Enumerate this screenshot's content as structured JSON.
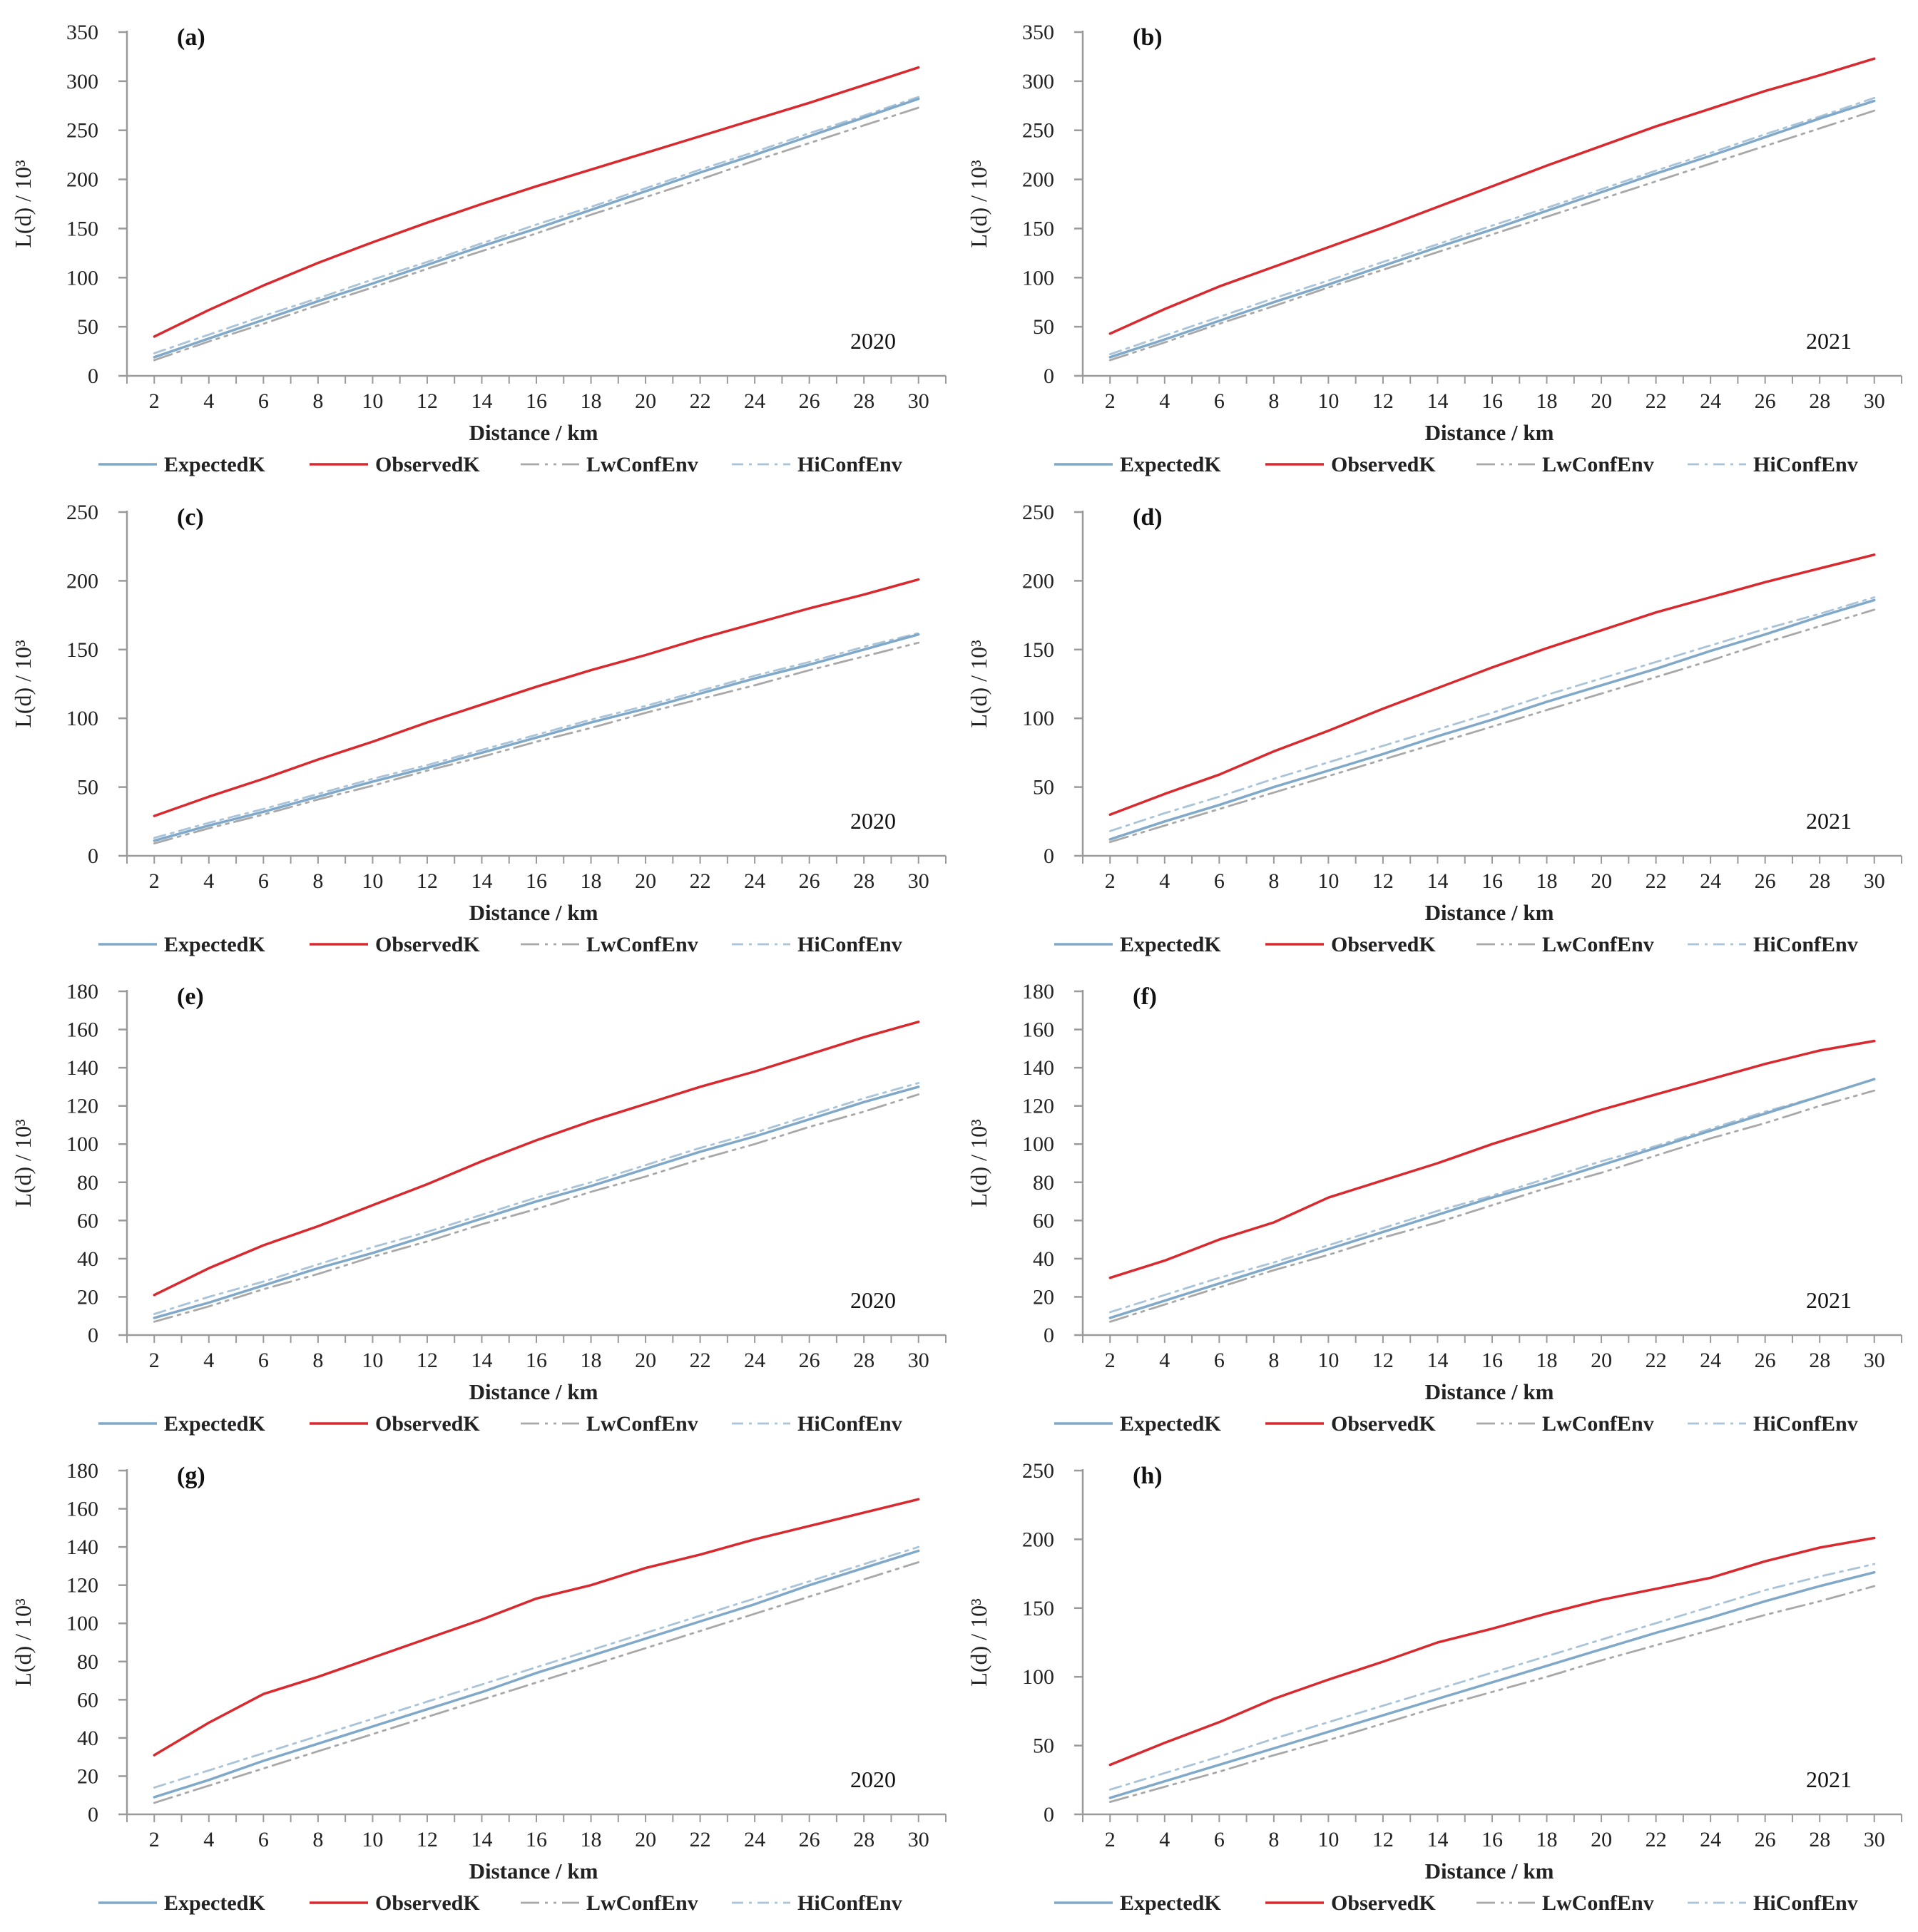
{
  "figure": {
    "legend_labels": {
      "expected": "ExpectedK",
      "observed": "ObservedK",
      "low": "LwConfEnv",
      "high": "HiConfEnv"
    },
    "colors": {
      "expected": "#7fa8c9",
      "observed": "#d9292e",
      "low": "#a8a8a8",
      "high": "#a9c3d8",
      "axis": "#9a9a9a"
    }
  },
  "chart_data": [
    {
      "type": "line",
      "panel": "(a)",
      "year": "2020",
      "xlabel": "Distance / km",
      "ylabel": "L(d) / 10³",
      "x": [
        2,
        4,
        6,
        8,
        10,
        12,
        14,
        16,
        18,
        20,
        22,
        24,
        26,
        28,
        30
      ],
      "xticks": [
        2,
        4,
        6,
        8,
        10,
        12,
        14,
        16,
        18,
        20,
        22,
        24,
        26,
        28,
        30
      ],
      "yticks": [
        0,
        50,
        100,
        150,
        200,
        250,
        300,
        350
      ],
      "ylim": [
        0,
        350
      ],
      "series": [
        {
          "name": "ExpectedK",
          "key": "expected",
          "values": [
            19,
            38,
            57,
            76,
            94,
            113,
            132,
            150,
            169,
            188,
            207,
            225,
            244,
            263,
            282
          ]
        },
        {
          "name": "ObservedK",
          "key": "observed",
          "values": [
            40,
            67,
            92,
            115,
            136,
            156,
            175,
            193,
            210,
            227,
            244,
            261,
            278,
            296,
            314
          ]
        },
        {
          "name": "LwConfEnv",
          "key": "low",
          "values": [
            16,
            35,
            53,
            72,
            90,
            109,
            127,
            145,
            164,
            182,
            200,
            219,
            237,
            255,
            273
          ]
        },
        {
          "name": "HiConfEnv",
          "key": "high",
          "values": [
            23,
            42,
            61,
            79,
            98,
            116,
            135,
            154,
            172,
            191,
            210,
            228,
            247,
            265,
            284
          ]
        }
      ]
    },
    {
      "type": "line",
      "panel": "(b)",
      "year": "2021",
      "xlabel": "Distance / km",
      "ylabel": "L(d) / 10³",
      "x": [
        2,
        4,
        6,
        8,
        10,
        12,
        14,
        16,
        18,
        20,
        22,
        24,
        26,
        28,
        30
      ],
      "xticks": [
        2,
        4,
        6,
        8,
        10,
        12,
        14,
        16,
        18,
        20,
        22,
        24,
        26,
        28,
        30
      ],
      "yticks": [
        0,
        50,
        100,
        150,
        200,
        250,
        300,
        350
      ],
      "ylim": [
        0,
        350
      ],
      "series": [
        {
          "name": "ExpectedK",
          "key": "expected",
          "values": [
            19,
            37,
            56,
            75,
            93,
            112,
            131,
            149,
            168,
            187,
            206,
            224,
            243,
            262,
            280
          ]
        },
        {
          "name": "ObservedK",
          "key": "observed",
          "values": [
            43,
            68,
            91,
            111,
            131,
            151,
            172,
            193,
            214,
            234,
            254,
            272,
            290,
            306,
            323
          ]
        },
        {
          "name": "LwConfEnv",
          "key": "low",
          "values": [
            16,
            34,
            53,
            71,
            90,
            108,
            126,
            144,
            162,
            180,
            198,
            216,
            234,
            252,
            270
          ]
        },
        {
          "name": "HiConfEnv",
          "key": "high",
          "values": [
            22,
            41,
            60,
            79,
            97,
            116,
            134,
            153,
            171,
            190,
            209,
            227,
            246,
            264,
            283
          ]
        }
      ]
    },
    {
      "type": "line",
      "panel": "(c)",
      "year": "2020",
      "xlabel": "Distance / km",
      "ylabel": "L(d) / 10³",
      "x": [
        2,
        4,
        6,
        8,
        10,
        12,
        14,
        16,
        18,
        20,
        22,
        24,
        26,
        28,
        30
      ],
      "xticks": [
        2,
        4,
        6,
        8,
        10,
        12,
        14,
        16,
        18,
        20,
        22,
        24,
        26,
        28,
        30
      ],
      "yticks": [
        0,
        50,
        100,
        150,
        200,
        250
      ],
      "ylim": [
        0,
        250
      ],
      "series": [
        {
          "name": "ExpectedK",
          "key": "expected",
          "values": [
            11,
            22,
            32,
            43,
            54,
            64,
            75,
            86,
            97,
            107,
            118,
            129,
            139,
            150,
            161
          ]
        },
        {
          "name": "ObservedK",
          "key": "observed",
          "values": [
            29,
            43,
            56,
            70,
            83,
            97,
            110,
            123,
            135,
            146,
            158,
            169,
            180,
            190,
            201
          ]
        },
        {
          "name": "LwConfEnv",
          "key": "low",
          "values": [
            9,
            20,
            30,
            41,
            51,
            62,
            72,
            83,
            93,
            104,
            114,
            124,
            135,
            145,
            155
          ]
        },
        {
          "name": "HiConfEnv",
          "key": "high",
          "values": [
            13,
            24,
            34,
            45,
            56,
            66,
            77,
            88,
            99,
            109,
            120,
            131,
            141,
            152,
            162
          ]
        }
      ]
    },
    {
      "type": "line",
      "panel": "(d)",
      "year": "2021",
      "xlabel": "Distance / km",
      "ylabel": "L(d) / 10³",
      "x": [
        2,
        4,
        6,
        8,
        10,
        12,
        14,
        16,
        18,
        20,
        22,
        24,
        26,
        28,
        30
      ],
      "xticks": [
        2,
        4,
        6,
        8,
        10,
        12,
        14,
        16,
        18,
        20,
        22,
        24,
        26,
        28,
        30
      ],
      "yticks": [
        0,
        50,
        100,
        150,
        200,
        250
      ],
      "ylim": [
        0,
        250
      ],
      "series": [
        {
          "name": "ExpectedK",
          "key": "expected",
          "values": [
            12,
            25,
            37,
            50,
            62,
            74,
            87,
            99,
            112,
            124,
            136,
            149,
            161,
            174,
            186
          ]
        },
        {
          "name": "ObservedK",
          "key": "observed",
          "values": [
            30,
            45,
            59,
            76,
            91,
            107,
            122,
            137,
            151,
            164,
            177,
            188,
            199,
            209,
            219
          ]
        },
        {
          "name": "LwConfEnv",
          "key": "low",
          "values": [
            10,
            22,
            34,
            46,
            58,
            70,
            82,
            94,
            106,
            118,
            130,
            142,
            155,
            167,
            179
          ]
        },
        {
          "name": "HiConfEnv",
          "key": "high",
          "values": [
            18,
            31,
            43,
            56,
            68,
            80,
            92,
            104,
            117,
            129,
            141,
            153,
            165,
            176,
            188
          ]
        }
      ]
    },
    {
      "type": "line",
      "panel": "(e)",
      "year": "2020",
      "xlabel": "Distance / km",
      "ylabel": "L(d) / 10³",
      "x": [
        2,
        4,
        6,
        8,
        10,
        12,
        14,
        16,
        18,
        20,
        22,
        24,
        26,
        28,
        30
      ],
      "xticks": [
        2,
        4,
        6,
        8,
        10,
        12,
        14,
        16,
        18,
        20,
        22,
        24,
        26,
        28,
        30
      ],
      "yticks": [
        0,
        20,
        40,
        60,
        80,
        100,
        120,
        140,
        160,
        180
      ],
      "ylim": [
        0,
        180
      ],
      "series": [
        {
          "name": "ExpectedK",
          "key": "expected",
          "values": [
            9,
            17,
            26,
            35,
            43,
            52,
            61,
            70,
            78,
            87,
            96,
            104,
            113,
            122,
            130
          ]
        },
        {
          "name": "ObservedK",
          "key": "observed",
          "values": [
            21,
            35,
            47,
            57,
            68,
            79,
            91,
            102,
            112,
            121,
            130,
            138,
            147,
            156,
            164
          ]
        },
        {
          "name": "LwConfEnv",
          "key": "low",
          "values": [
            7,
            15,
            24,
            32,
            41,
            49,
            58,
            66,
            75,
            83,
            92,
            100,
            109,
            117,
            126
          ]
        },
        {
          "name": "HiConfEnv",
          "key": "high",
          "values": [
            11,
            20,
            28,
            37,
            46,
            54,
            63,
            72,
            80,
            89,
            98,
            106,
            115,
            124,
            132
          ]
        }
      ]
    },
    {
      "type": "line",
      "panel": "(f)",
      "year": "2021",
      "xlabel": "Distance / km",
      "ylabel": "L(d) / 10³",
      "x": [
        2,
        4,
        6,
        8,
        10,
        12,
        14,
        16,
        18,
        20,
        22,
        24,
        26,
        28,
        30
      ],
      "xticks": [
        2,
        4,
        6,
        8,
        10,
        12,
        14,
        16,
        18,
        20,
        22,
        24,
        26,
        28,
        30
      ],
      "yticks": [
        0,
        20,
        40,
        60,
        80,
        100,
        120,
        140,
        160,
        180
      ],
      "ylim": [
        0,
        180
      ],
      "series": [
        {
          "name": "ExpectedK",
          "key": "expected",
          "values": [
            9,
            18,
            27,
            36,
            45,
            54,
            63,
            72,
            80,
            89,
            98,
            107,
            116,
            125,
            134
          ]
        },
        {
          "name": "ObservedK",
          "key": "observed",
          "values": [
            30,
            39,
            50,
            59,
            72,
            81,
            90,
            100,
            109,
            118,
            126,
            134,
            142,
            149,
            154
          ]
        },
        {
          "name": "LwConfEnv",
          "key": "low",
          "values": [
            7,
            16,
            25,
            34,
            42,
            51,
            59,
            68,
            77,
            85,
            94,
            103,
            111,
            120,
            128
          ]
        },
        {
          "name": "HiConfEnv",
          "key": "high",
          "values": [
            12,
            21,
            30,
            38,
            47,
            56,
            65,
            73,
            82,
            91,
            99,
            108,
            117,
            125,
            134
          ]
        }
      ]
    },
    {
      "type": "line",
      "panel": "(g)",
      "year": "2020",
      "xlabel": "Distance / km",
      "ylabel": "L(d) / 10³",
      "x": [
        2,
        4,
        6,
        8,
        10,
        12,
        14,
        16,
        18,
        20,
        22,
        24,
        26,
        28,
        30
      ],
      "xticks": [
        2,
        4,
        6,
        8,
        10,
        12,
        14,
        16,
        18,
        20,
        22,
        24,
        26,
        28,
        30
      ],
      "yticks": [
        0,
        20,
        40,
        60,
        80,
        100,
        120,
        140,
        160,
        180
      ],
      "ylim": [
        0,
        180
      ],
      "series": [
        {
          "name": "ExpectedK",
          "key": "expected",
          "values": [
            9,
            18,
            28,
            37,
            46,
            55,
            64,
            74,
            83,
            92,
            101,
            110,
            120,
            129,
            138
          ]
        },
        {
          "name": "ObservedK",
          "key": "observed",
          "values": [
            31,
            48,
            63,
            72,
            82,
            92,
            102,
            113,
            120,
            129,
            136,
            144,
            151,
            158,
            165
          ]
        },
        {
          "name": "LwConfEnv",
          "key": "low",
          "values": [
            6,
            15,
            24,
            33,
            42,
            51,
            60,
            69,
            78,
            87,
            96,
            105,
            114,
            123,
            132
          ]
        },
        {
          "name": "HiConfEnv",
          "key": "high",
          "values": [
            14,
            23,
            32,
            41,
            50,
            59,
            68,
            77,
            86,
            95,
            104,
            113,
            122,
            131,
            140
          ]
        }
      ]
    },
    {
      "type": "line",
      "panel": "(h)",
      "year": "2021",
      "xlabel": "Distance / km",
      "ylabel": "L(d) / 10³",
      "x": [
        2,
        4,
        6,
        8,
        10,
        12,
        14,
        16,
        18,
        20,
        22,
        24,
        26,
        28,
        30
      ],
      "xticks": [
        2,
        4,
        6,
        8,
        10,
        12,
        14,
        16,
        18,
        20,
        22,
        24,
        26,
        28,
        30
      ],
      "yticks": [
        0,
        50,
        100,
        150,
        200,
        250
      ],
      "ylim": [
        0,
        250
      ],
      "series": [
        {
          "name": "ExpectedK",
          "key": "expected",
          "values": [
            12,
            24,
            36,
            48,
            60,
            72,
            84,
            96,
            108,
            120,
            132,
            143,
            155,
            166,
            176
          ]
        },
        {
          "name": "ObservedK",
          "key": "observed",
          "values": [
            36,
            52,
            67,
            84,
            98,
            111,
            125,
            135,
            146,
            156,
            164,
            172,
            184,
            194,
            201
          ]
        },
        {
          "name": "LwConfEnv",
          "key": "low",
          "values": [
            9,
            20,
            31,
            43,
            54,
            66,
            78,
            89,
            100,
            112,
            123,
            134,
            145,
            155,
            166
          ]
        },
        {
          "name": "HiConfEnv",
          "key": "high",
          "values": [
            18,
            30,
            42,
            55,
            67,
            79,
            91,
            103,
            115,
            127,
            139,
            151,
            163,
            173,
            182
          ]
        }
      ]
    }
  ]
}
